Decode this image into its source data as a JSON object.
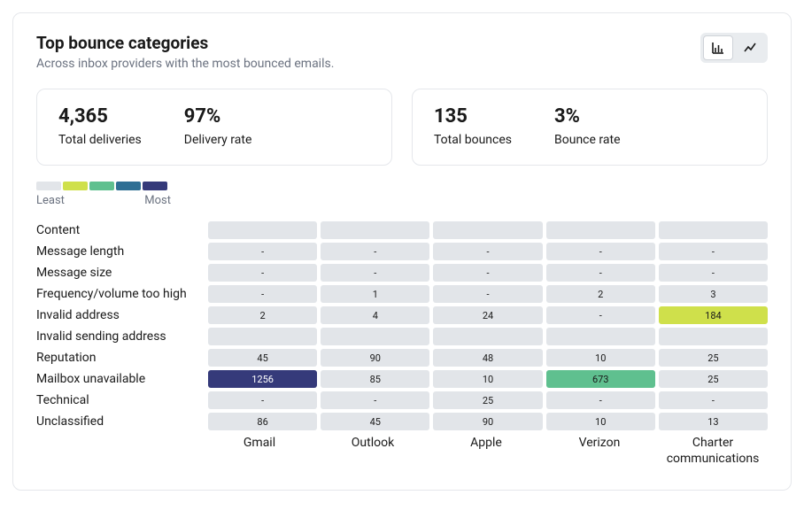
{
  "header": {
    "title": "Top bounce categories",
    "subtitle": "Across inbox providers with the most bounced emails."
  },
  "viewToggle": {
    "barActive": true,
    "lineActive": false
  },
  "stats": {
    "deliveries": {
      "value": "4,365",
      "label": "Total deliveries"
    },
    "deliveryRate": {
      "value": "97%",
      "label": "Delivery rate"
    },
    "bounces": {
      "value": "135",
      "label": "Total bounces"
    },
    "bounceRate": {
      "value": "3%",
      "label": "Bounce rate"
    }
  },
  "legend": {
    "leastLabel": "Least",
    "mostLabel": "Most",
    "colors": [
      "#e2e5e9",
      "#cfe04b",
      "#5fc08f",
      "#2f6f94",
      "#353a7a"
    ]
  },
  "heatmap": {
    "defaultCellBg": "#e2e5e9",
    "defaultTextColor": "#1a1a1a",
    "emptyMarker": "-",
    "columns": [
      "Gmail",
      "Outlook",
      "Apple",
      "Verizon",
      "Charter communications"
    ],
    "rows": [
      {
        "label": "Content",
        "cells": [
          {
            "text": "",
            "bg": "#e2e5e9"
          },
          {
            "text": "",
            "bg": "#e2e5e9"
          },
          {
            "text": "",
            "bg": "#e2e5e9"
          },
          {
            "text": "",
            "bg": "#e2e5e9"
          },
          {
            "text": "",
            "bg": "#e2e5e9"
          }
        ]
      },
      {
        "label": "Message length",
        "cells": [
          {
            "text": "-",
            "bg": "#e2e5e9"
          },
          {
            "text": "-",
            "bg": "#e2e5e9"
          },
          {
            "text": "-",
            "bg": "#e2e5e9"
          },
          {
            "text": "-",
            "bg": "#e2e5e9"
          },
          {
            "text": "-",
            "bg": "#e2e5e9"
          }
        ]
      },
      {
        "label": "Message size",
        "cells": [
          {
            "text": "-",
            "bg": "#e2e5e9"
          },
          {
            "text": "-",
            "bg": "#e2e5e9"
          },
          {
            "text": "-",
            "bg": "#e2e5e9"
          },
          {
            "text": "-",
            "bg": "#e2e5e9"
          },
          {
            "text": "-",
            "bg": "#e2e5e9"
          }
        ]
      },
      {
        "label": "Frequency/volume too high",
        "cells": [
          {
            "text": "-",
            "bg": "#e2e5e9"
          },
          {
            "text": "1",
            "bg": "#e2e5e9"
          },
          {
            "text": "-",
            "bg": "#e2e5e9"
          },
          {
            "text": "2",
            "bg": "#e2e5e9"
          },
          {
            "text": "3",
            "bg": "#e2e5e9"
          }
        ]
      },
      {
        "label": "Invalid address",
        "cells": [
          {
            "text": "2",
            "bg": "#e2e5e9"
          },
          {
            "text": "4",
            "bg": "#e2e5e9"
          },
          {
            "text": "24",
            "bg": "#e2e5e9"
          },
          {
            "text": "-",
            "bg": "#e2e5e9"
          },
          {
            "text": "184",
            "bg": "#cfe04b"
          }
        ]
      },
      {
        "label": "Invalid sending address",
        "cells": [
          {
            "text": "",
            "bg": "#e2e5e9"
          },
          {
            "text": "",
            "bg": "#e2e5e9"
          },
          {
            "text": "",
            "bg": "#e2e5e9"
          },
          {
            "text": "",
            "bg": "#e2e5e9"
          },
          {
            "text": "",
            "bg": "#e2e5e9"
          }
        ]
      },
      {
        "label": "Reputation",
        "cells": [
          {
            "text": "45",
            "bg": "#e2e5e9"
          },
          {
            "text": "90",
            "bg": "#e2e5e9"
          },
          {
            "text": "48",
            "bg": "#e2e5e9"
          },
          {
            "text": "10",
            "bg": "#e2e5e9"
          },
          {
            "text": "25",
            "bg": "#e2e5e9"
          }
        ]
      },
      {
        "label": "Mailbox unavailable",
        "cells": [
          {
            "text": "1256",
            "bg": "#353a7a",
            "color": "#ffffff"
          },
          {
            "text": "85",
            "bg": "#e2e5e9"
          },
          {
            "text": "10",
            "bg": "#e2e5e9"
          },
          {
            "text": "673",
            "bg": "#5fc08f"
          },
          {
            "text": "25",
            "bg": "#e2e5e9"
          }
        ]
      },
      {
        "label": "Technical",
        "cells": [
          {
            "text": "-",
            "bg": "#e2e5e9"
          },
          {
            "text": "-",
            "bg": "#e2e5e9"
          },
          {
            "text": "25",
            "bg": "#e2e5e9"
          },
          {
            "text": "-",
            "bg": "#e2e5e9"
          },
          {
            "text": "-",
            "bg": "#e2e5e9"
          }
        ]
      },
      {
        "label": "Unclassified",
        "cells": [
          {
            "text": "86",
            "bg": "#e2e5e9"
          },
          {
            "text": "45",
            "bg": "#e2e5e9"
          },
          {
            "text": "90",
            "bg": "#e2e5e9"
          },
          {
            "text": "10",
            "bg": "#e2e5e9"
          },
          {
            "text": "13",
            "bg": "#e2e5e9"
          }
        ]
      }
    ]
  }
}
